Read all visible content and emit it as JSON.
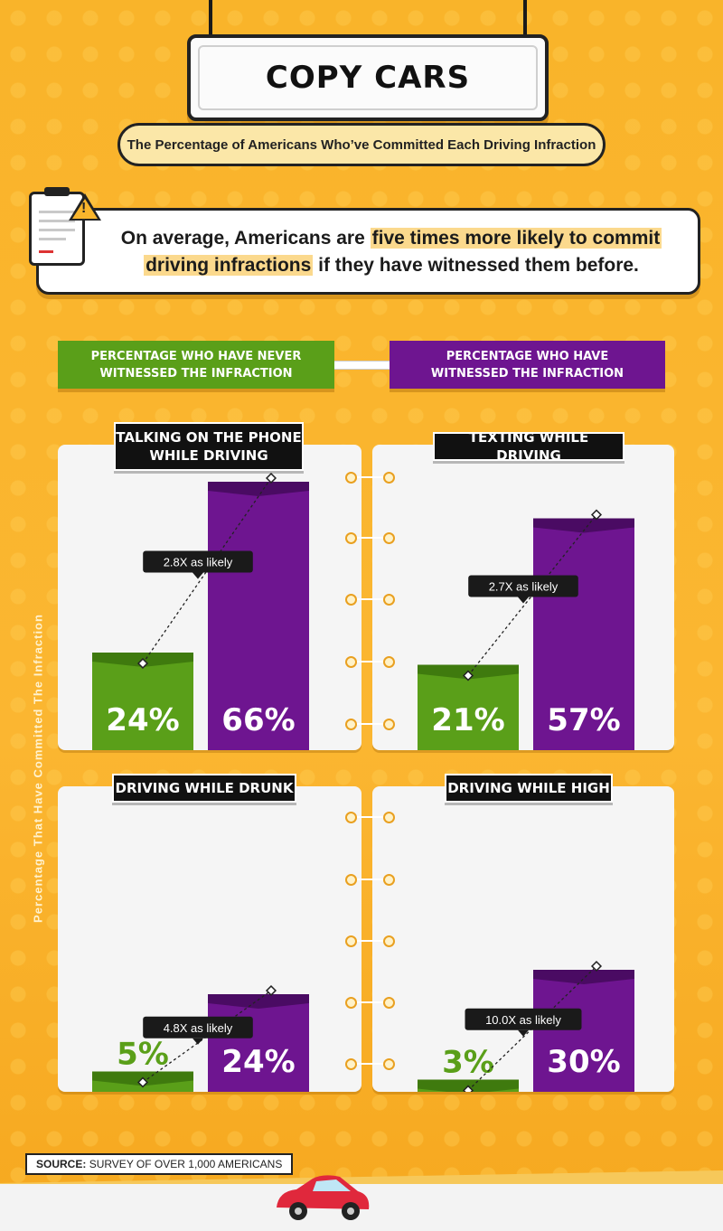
{
  "header": {
    "title": "COPY CARS",
    "subtitle": "The Percentage of Americans Who’ve Committed Each Driving Infraction"
  },
  "callout": {
    "text_before": "On average, Americans are ",
    "highlight_1": "five times more likely to commit",
    "highlight_2": "driving infractions",
    "text_after": " if they have witnessed them before."
  },
  "legend": {
    "never": "PERCENTAGE WHO HAVE NEVER WITNESSED THE INFRACTION",
    "witnessed": "PERCENTAGE WHO HAVE WITNESSED THE INFRACTION"
  },
  "y_axis_label": "Percentage That Have Committed The Infraction",
  "source": {
    "label": "SOURCE:",
    "text": "SURVEY OF OVER 1,000 AMERICANS"
  },
  "colors": {
    "never": "#5a9f19",
    "never_dark": "#3f7a0e",
    "witnessed": "#6e1590",
    "witnessed_dark": "#4a0b63",
    "background": "#f9b52c"
  },
  "chart_data": [
    {
      "type": "bar",
      "title": "TALKING ON THE PHONE WHILE DRIVING",
      "categories": [
        "Never witnessed",
        "Witnessed"
      ],
      "values": [
        24,
        66
      ],
      "labels": [
        "24%",
        "66%"
      ],
      "ratio_label": "2.8X as likely"
    },
    {
      "type": "bar",
      "title": "TEXTING WHILE DRIVING",
      "categories": [
        "Never witnessed",
        "Witnessed"
      ],
      "values": [
        21,
        57
      ],
      "labels": [
        "21%",
        "57%"
      ],
      "ratio_label": "2.7X as likely"
    },
    {
      "type": "bar",
      "title": "DRIVING WHILE DRUNK",
      "categories": [
        "Never witnessed",
        "Witnessed"
      ],
      "values": [
        5,
        24
      ],
      "labels": [
        "5%",
        "24%"
      ],
      "ratio_label": "4.8X as likely"
    },
    {
      "type": "bar",
      "title": "DRIVING WHILE HIGH",
      "categories": [
        "Never witnessed",
        "Witnessed"
      ],
      "values": [
        3,
        30
      ],
      "labels": [
        "3%",
        "30%"
      ],
      "ratio_label": "10.0X as likely"
    }
  ]
}
